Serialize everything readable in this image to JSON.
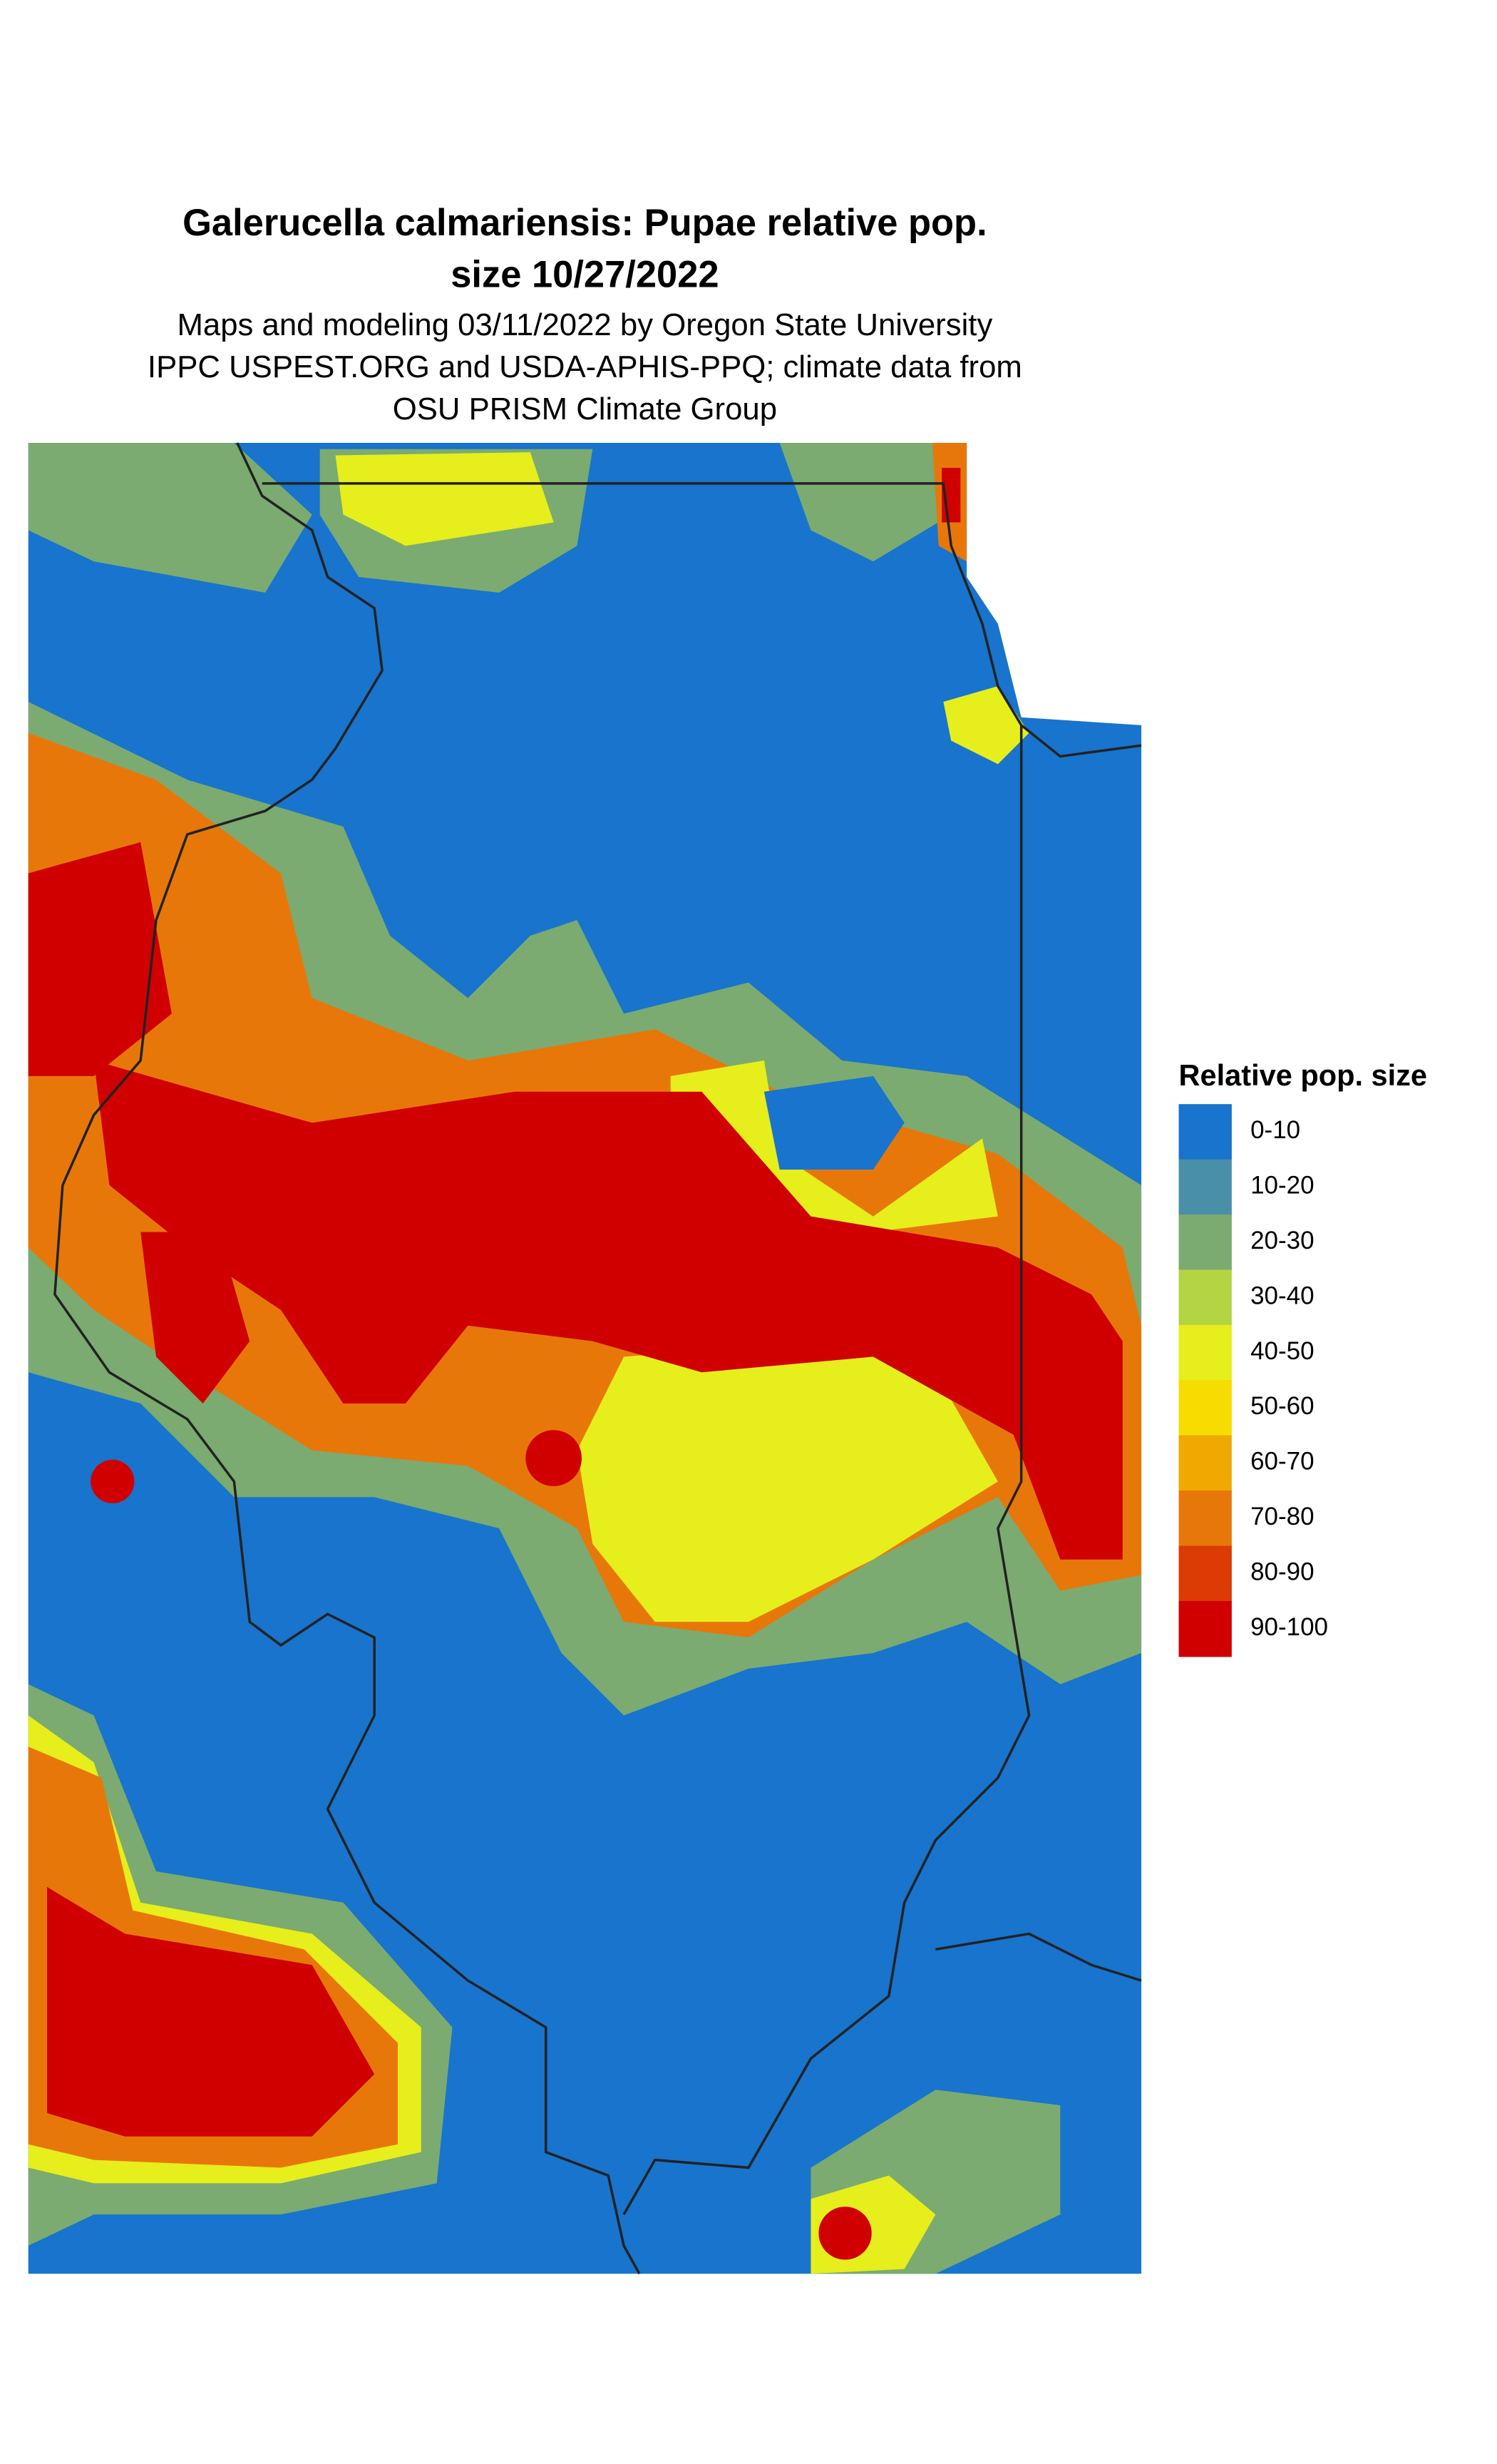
{
  "header": {
    "title_lines": [
      "Galerucella calmariensis: Pupae relative pop.",
      "size 10/27/2022"
    ],
    "subtitle_lines": [
      "Maps and modeling 03/11/2022 by Oregon State University",
      "IPPC USPEST.ORG and USDA-APHIS-PPQ; climate data from",
      "OSU PRISM Climate Group"
    ]
  },
  "legend": {
    "title": "Relative pop. size",
    "items": [
      {
        "label": "0-10",
        "color": "#1874cd"
      },
      {
        "label": "10-20",
        "color": "#4a8fa8"
      },
      {
        "label": "20-30",
        "color": "#7bab70"
      },
      {
        "label": "30-40",
        "color": "#b3d443"
      },
      {
        "label": "40-50",
        "color": "#e6ee1c"
      },
      {
        "label": "50-60",
        "color": "#f7dc00"
      },
      {
        "label": "60-70",
        "color": "#f0a900"
      },
      {
        "label": "70-80",
        "color": "#e8770a"
      },
      {
        "label": "80-90",
        "color": "#dc3b05"
      },
      {
        "label": "90-100",
        "color": "#d00000"
      }
    ]
  }
}
